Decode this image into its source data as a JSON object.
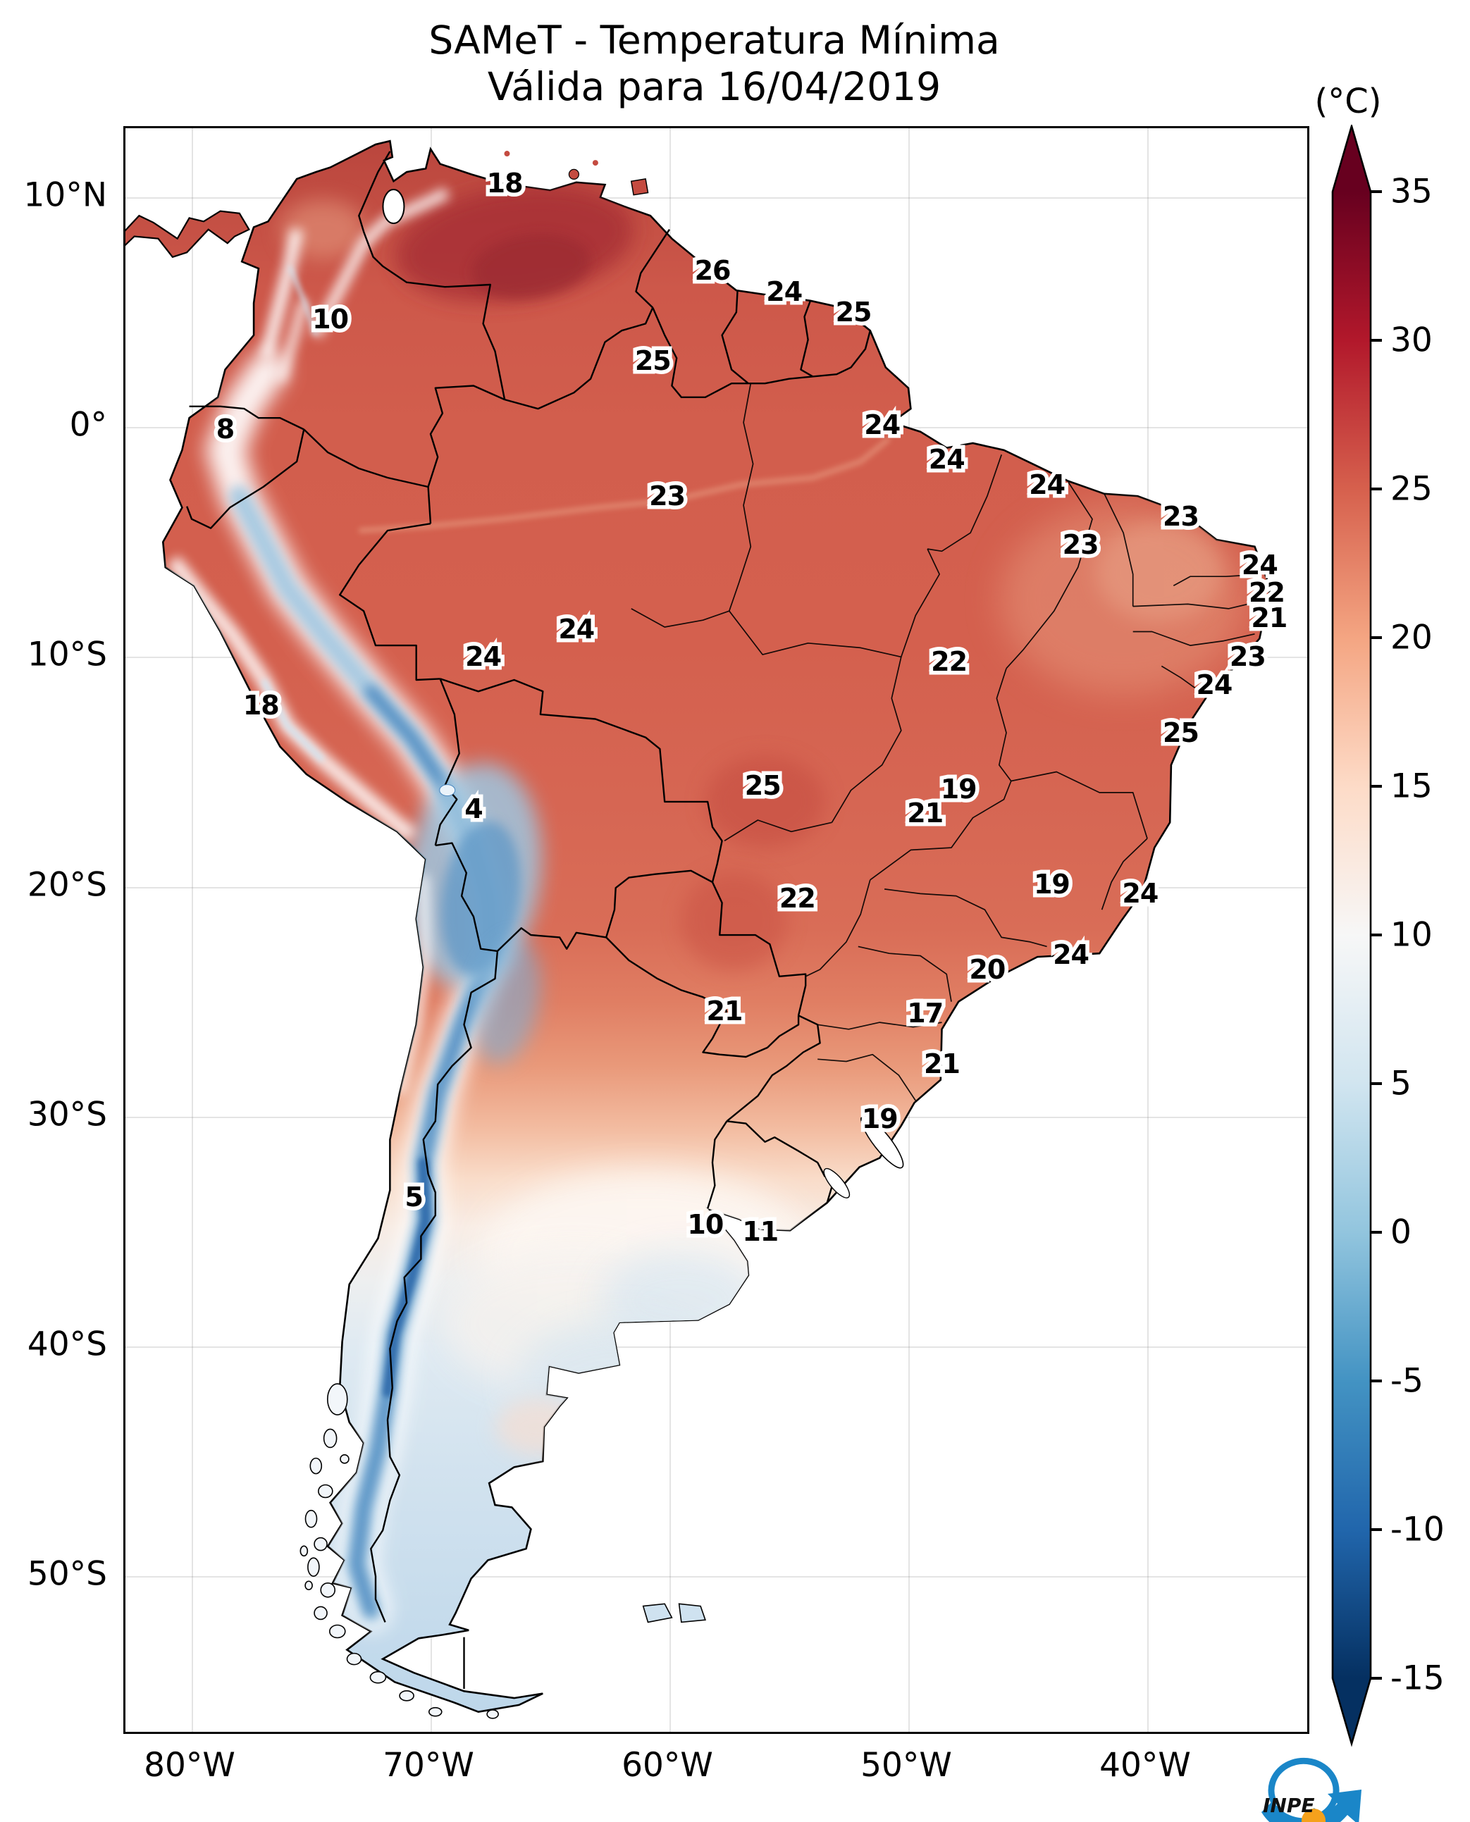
{
  "title": {
    "line1": "SAMeT - Temperatura Mínima",
    "line2": "Válida para 16/04/2019"
  },
  "colorbar": {
    "unit": "(°C)",
    "ticks": [
      35,
      30,
      25,
      20,
      15,
      10,
      5,
      0,
      -5,
      -10,
      -15
    ],
    "vmin": -15,
    "vmax": 35,
    "extend": "both",
    "stops": [
      {
        "value": 35,
        "color": "#67001f"
      },
      {
        "value": 30,
        "color": "#b2182b"
      },
      {
        "value": 25,
        "color": "#d6604d"
      },
      {
        "value": 20,
        "color": "#f4a582"
      },
      {
        "value": 15,
        "color": "#fddbc7"
      },
      {
        "value": 10,
        "color": "#f7f7f7"
      },
      {
        "value": 5,
        "color": "#d1e5f0"
      },
      {
        "value": 0,
        "color": "#92c5de"
      },
      {
        "value": -5,
        "color": "#4393c3"
      },
      {
        "value": -10,
        "color": "#2166ac"
      },
      {
        "value": -15,
        "color": "#053061"
      }
    ]
  },
  "axes": {
    "x_ticks": [
      {
        "label": "80°W",
        "lon": -80
      },
      {
        "label": "70°W",
        "lon": -70
      },
      {
        "label": "60°W",
        "lon": -60
      },
      {
        "label": "50°W",
        "lon": -50
      },
      {
        "label": "40°W",
        "lon": -40
      }
    ],
    "y_ticks": [
      {
        "label": "10°N",
        "lat": 10
      },
      {
        "label": "0°",
        "lat": 0
      },
      {
        "label": "10°S",
        "lat": -10
      },
      {
        "label": "20°S",
        "lat": -20
      },
      {
        "label": "30°S",
        "lat": -30
      },
      {
        "label": "40°S",
        "lat": -40
      },
      {
        "label": "50°S",
        "lat": -50
      }
    ]
  },
  "logo": {
    "text": "INPE"
  },
  "chart_data": {
    "type": "heatmap",
    "title": "SAMeT - Temperatura Mínima",
    "subtitle": "Válida para 16/04/2019",
    "unit": "°C",
    "colormap": "RdBu_r",
    "vmin": -15,
    "vmax": 35,
    "lon_range": [
      -83.2,
      -33.3
    ],
    "lat_range": [
      -56.8,
      13.0
    ],
    "grid": "faint 10-degree graticule",
    "legend_position": "right colorbar, arrow ends both sides",
    "stations": [
      {
        "temp": 18,
        "lon": -66.9,
        "lat": 10.6
      },
      {
        "temp": 26,
        "lon": -58.2,
        "lat": 6.8
      },
      {
        "temp": 24,
        "lon": -55.2,
        "lat": 5.9
      },
      {
        "temp": 25,
        "lon": -52.3,
        "lat": 5.0
      },
      {
        "temp": 10,
        "lon": -74.2,
        "lat": 4.7
      },
      {
        "temp": 25,
        "lon": -60.7,
        "lat": 2.9
      },
      {
        "temp": 8,
        "lon": -78.6,
        "lat": -0.1
      },
      {
        "temp": 24,
        "lon": -51.1,
        "lat": 0.1
      },
      {
        "temp": 24,
        "lon": -48.4,
        "lat": -1.4
      },
      {
        "temp": 24,
        "lon": -44.2,
        "lat": -2.5
      },
      {
        "temp": 23,
        "lon": -60.1,
        "lat": -3.0
      },
      {
        "temp": 23,
        "lon": -38.6,
        "lat": -3.9
      },
      {
        "temp": 23,
        "lon": -42.8,
        "lat": -5.1
      },
      {
        "temp": 24,
        "lon": -35.3,
        "lat": -6.0
      },
      {
        "temp": 22,
        "lon": -35.0,
        "lat": -7.2
      },
      {
        "temp": 21,
        "lon": -34.9,
        "lat": -8.3
      },
      {
        "temp": 24,
        "lon": -63.9,
        "lat": -8.8
      },
      {
        "temp": 23,
        "lon": -35.8,
        "lat": -10.0
      },
      {
        "temp": 24,
        "lon": -67.8,
        "lat": -10.0
      },
      {
        "temp": 22,
        "lon": -48.3,
        "lat": -10.2
      },
      {
        "temp": 24,
        "lon": -37.2,
        "lat": -11.2
      },
      {
        "temp": 18,
        "lon": -77.1,
        "lat": -12.1
      },
      {
        "temp": 25,
        "lon": -38.6,
        "lat": -13.3
      },
      {
        "temp": 25,
        "lon": -56.1,
        "lat": -15.6
      },
      {
        "temp": 19,
        "lon": -47.9,
        "lat": -15.75
      },
      {
        "temp": 4,
        "lon": -68.2,
        "lat": -16.6
      },
      {
        "temp": 21,
        "lon": -49.3,
        "lat": -16.8
      },
      {
        "temp": 19,
        "lon": -44.0,
        "lat": -19.9
      },
      {
        "temp": 24,
        "lon": -40.3,
        "lat": -20.3
      },
      {
        "temp": 22,
        "lon": -54.65,
        "lat": -20.5
      },
      {
        "temp": 24,
        "lon": -43.2,
        "lat": -22.95
      },
      {
        "temp": 20,
        "lon": -46.7,
        "lat": -23.6
      },
      {
        "temp": 21,
        "lon": -57.7,
        "lat": -25.4
      },
      {
        "temp": 17,
        "lon": -49.3,
        "lat": -25.5
      },
      {
        "temp": 21,
        "lon": -48.6,
        "lat": -27.7
      },
      {
        "temp": 19,
        "lon": -51.2,
        "lat": -30.1
      },
      {
        "temp": 5,
        "lon": -70.7,
        "lat": -33.5
      },
      {
        "temp": 10,
        "lon": -58.5,
        "lat": -34.7
      },
      {
        "temp": 11,
        "lon": -56.2,
        "lat": -35.0
      }
    ]
  }
}
